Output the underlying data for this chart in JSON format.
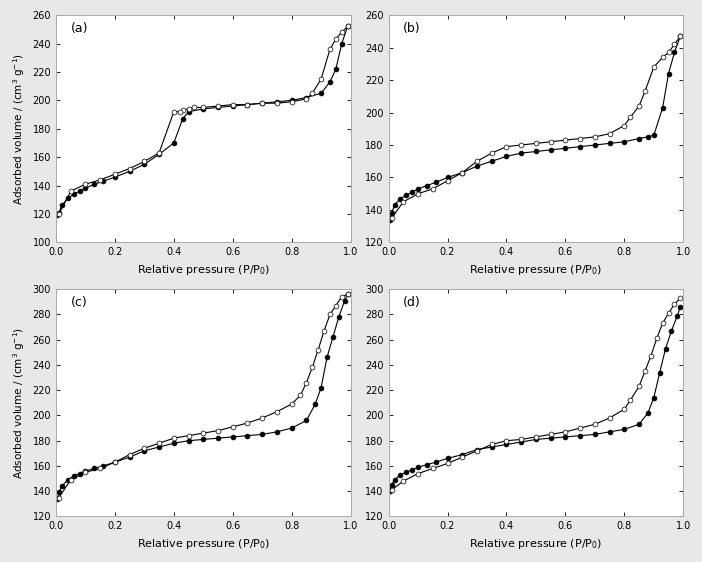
{
  "panels": [
    {
      "label": "(a)",
      "ylim": [
        100,
        260
      ],
      "yticks": [
        100,
        120,
        140,
        160,
        180,
        200,
        220,
        240,
        260
      ],
      "adsorption": {
        "x": [
          0.005,
          0.01,
          0.02,
          0.04,
          0.06,
          0.08,
          0.1,
          0.13,
          0.16,
          0.2,
          0.25,
          0.3,
          0.35,
          0.4,
          0.43,
          0.45,
          0.5,
          0.55,
          0.6,
          0.65,
          0.7,
          0.75,
          0.8,
          0.85,
          0.9,
          0.93,
          0.95,
          0.97,
          0.99
        ],
        "y": [
          119,
          121,
          126,
          131,
          134,
          136,
          138,
          141,
          143,
          146,
          150,
          155,
          162,
          170,
          187,
          192,
          194,
          195,
          196,
          197,
          198,
          199,
          200,
          202,
          205,
          213,
          222,
          240,
          252
        ]
      },
      "desorption": {
        "x": [
          0.99,
          0.97,
          0.95,
          0.93,
          0.9,
          0.87,
          0.85,
          0.8,
          0.75,
          0.7,
          0.65,
          0.6,
          0.55,
          0.5,
          0.47,
          0.45,
          0.43,
          0.42,
          0.4,
          0.35,
          0.3,
          0.25,
          0.2,
          0.15,
          0.1,
          0.05,
          0.01
        ],
        "y": [
          252,
          248,
          243,
          236,
          215,
          205,
          201,
          199,
          198,
          198,
          197,
          197,
          196,
          195,
          195,
          194,
          193,
          192,
          192,
          163,
          157,
          152,
          148,
          144,
          141,
          136,
          120
        ]
      }
    },
    {
      "label": "(b)",
      "ylim": [
        120,
        260
      ],
      "yticks": [
        120,
        140,
        160,
        180,
        200,
        220,
        240,
        260
      ],
      "adsorption": {
        "x": [
          0.005,
          0.01,
          0.02,
          0.04,
          0.06,
          0.08,
          0.1,
          0.13,
          0.16,
          0.2,
          0.25,
          0.3,
          0.35,
          0.4,
          0.45,
          0.5,
          0.55,
          0.6,
          0.65,
          0.7,
          0.75,
          0.8,
          0.85,
          0.88,
          0.9,
          0.93,
          0.95,
          0.97,
          0.99
        ],
        "y": [
          134,
          138,
          143,
          147,
          149,
          151,
          153,
          155,
          157,
          160,
          163,
          167,
          170,
          173,
          175,
          176,
          177,
          178,
          179,
          180,
          181,
          182,
          184,
          185,
          186,
          203,
          224,
          237,
          247
        ]
      },
      "desorption": {
        "x": [
          0.99,
          0.97,
          0.95,
          0.93,
          0.9,
          0.87,
          0.85,
          0.82,
          0.8,
          0.75,
          0.7,
          0.65,
          0.6,
          0.55,
          0.5,
          0.45,
          0.4,
          0.35,
          0.3,
          0.25,
          0.2,
          0.15,
          0.1,
          0.05,
          0.01
        ],
        "y": [
          247,
          242,
          237,
          234,
          228,
          213,
          204,
          197,
          192,
          187,
          185,
          184,
          183,
          182,
          181,
          180,
          179,
          175,
          170,
          163,
          158,
          153,
          150,
          145,
          135
        ]
      }
    },
    {
      "label": "(c)",
      "ylim": [
        120,
        300
      ],
      "yticks": [
        120,
        140,
        160,
        180,
        200,
        220,
        240,
        260,
        280,
        300
      ],
      "adsorption": {
        "x": [
          0.005,
          0.01,
          0.02,
          0.04,
          0.06,
          0.08,
          0.1,
          0.13,
          0.16,
          0.2,
          0.25,
          0.3,
          0.35,
          0.4,
          0.45,
          0.5,
          0.55,
          0.6,
          0.65,
          0.7,
          0.75,
          0.8,
          0.85,
          0.88,
          0.9,
          0.92,
          0.94,
          0.96,
          0.98,
          0.99
        ],
        "y": [
          134,
          139,
          144,
          149,
          152,
          154,
          156,
          158,
          160,
          163,
          167,
          172,
          175,
          178,
          180,
          181,
          182,
          183,
          184,
          185,
          187,
          190,
          196,
          209,
          222,
          246,
          262,
          278,
          291,
          296
        ]
      },
      "desorption": {
        "x": [
          0.99,
          0.97,
          0.95,
          0.93,
          0.91,
          0.89,
          0.87,
          0.85,
          0.83,
          0.8,
          0.75,
          0.7,
          0.65,
          0.6,
          0.55,
          0.5,
          0.45,
          0.4,
          0.35,
          0.3,
          0.25,
          0.2,
          0.15,
          0.1,
          0.05,
          0.01
        ],
        "y": [
          296,
          294,
          287,
          280,
          267,
          252,
          238,
          226,
          216,
          209,
          203,
          198,
          194,
          191,
          188,
          186,
          184,
          182,
          178,
          174,
          169,
          163,
          158,
          155,
          149,
          135
        ]
      }
    },
    {
      "label": "(d)",
      "ylim": [
        120,
        300
      ],
      "yticks": [
        120,
        140,
        160,
        180,
        200,
        220,
        240,
        260,
        280,
        300
      ],
      "adsorption": {
        "x": [
          0.005,
          0.01,
          0.02,
          0.04,
          0.06,
          0.08,
          0.1,
          0.13,
          0.16,
          0.2,
          0.25,
          0.3,
          0.35,
          0.4,
          0.45,
          0.5,
          0.55,
          0.6,
          0.65,
          0.7,
          0.75,
          0.8,
          0.85,
          0.88,
          0.9,
          0.92,
          0.94,
          0.96,
          0.98,
          0.99
        ],
        "y": [
          140,
          145,
          149,
          153,
          155,
          157,
          159,
          161,
          163,
          166,
          169,
          173,
          175,
          177,
          179,
          181,
          182,
          183,
          184,
          185,
          187,
          189,
          193,
          202,
          214,
          234,
          253,
          267,
          279,
          286
        ]
      },
      "desorption": {
        "x": [
          0.99,
          0.97,
          0.95,
          0.93,
          0.91,
          0.89,
          0.87,
          0.85,
          0.82,
          0.8,
          0.75,
          0.7,
          0.65,
          0.6,
          0.55,
          0.5,
          0.45,
          0.4,
          0.35,
          0.3,
          0.25,
          0.2,
          0.15,
          0.1,
          0.05,
          0.01
        ],
        "y": [
          293,
          288,
          281,
          273,
          261,
          247,
          235,
          223,
          212,
          205,
          198,
          193,
          190,
          187,
          185,
          183,
          181,
          180,
          177,
          172,
          167,
          162,
          158,
          154,
          148,
          141
        ]
      }
    }
  ],
  "xlabel": "Relative pressure (P/P$_0$)",
  "ylabel": "Adsorbed volume / (cm$^3$ g$^{-1}$)",
  "markersize": 3.5,
  "linewidth": 0.8,
  "background_color": "#e8e8e8",
  "panel_bg": "white",
  "xlim": [
    0,
    1.0
  ],
  "xticks": [
    0.0,
    0.2,
    0.4,
    0.6,
    0.8,
    1.0
  ]
}
